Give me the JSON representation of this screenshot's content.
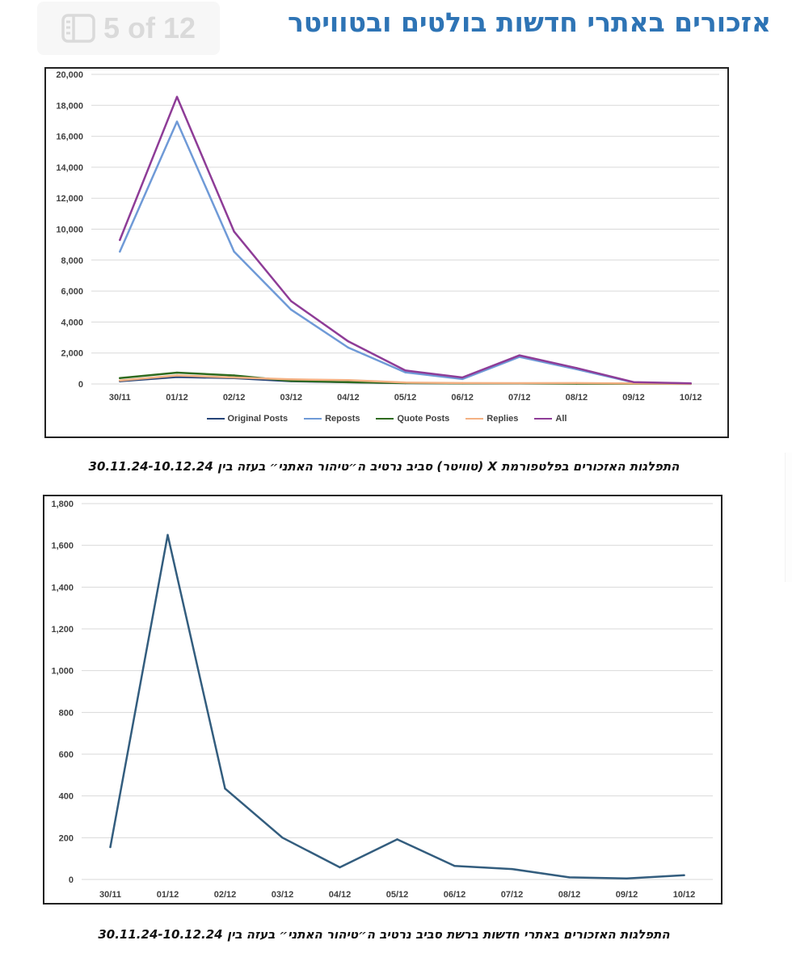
{
  "header": {
    "title": "אזכורים באתרי חדשות בולטים ובטוויטר",
    "page_indicator": "5 of 12",
    "page_icon": "sidebar-panel-icon"
  },
  "captions": {
    "chart1": "התפלגות האזכורים בפלטפורמת X (טוויטר) סביב נרטיב ה״טיהור האתני״ בעזה בין 30.11.24-10.12.24",
    "chart2": "התפלגות האזכורים באתרי חדשות ברשת סביב נרטיב ה״טיהור האתני״ בעזה בין 30.11.24-10.12.24"
  },
  "colors": {
    "original_posts": "#264478",
    "reposts": "#6f9ad7",
    "quote_posts": "#2e6b1f",
    "replies": "#f4b183",
    "all": "#8e3c97",
    "news": "#335d7e",
    "title": "#2e74b5"
  },
  "chart_data": [
    {
      "type": "line",
      "categories": [
        "30/11",
        "01/12",
        "02/12",
        "03/12",
        "04/12",
        "05/12",
        "06/12",
        "07/12",
        "08/12",
        "09/12",
        "10/12"
      ],
      "y_ticks": [
        "0",
        "2,000",
        "4,000",
        "6,000",
        "8,000",
        "10,000",
        "12,000",
        "14,000",
        "16,000",
        "18,000",
        "20,000"
      ],
      "ylim": [
        0,
        20000
      ],
      "grid": true,
      "legend_position": "bottom",
      "series": [
        {
          "name": "Original Posts",
          "values": [
            180,
            450,
            380,
            180,
            110,
            50,
            30,
            30,
            30,
            20,
            10
          ]
        },
        {
          "name": "Reposts",
          "values": [
            8550,
            16950,
            8550,
            4800,
            2350,
            750,
            320,
            1750,
            950,
            100,
            30
          ]
        },
        {
          "name": "Quote Posts",
          "values": [
            380,
            730,
            550,
            200,
            120,
            60,
            40,
            40,
            20,
            10,
            5
          ]
        },
        {
          "name": "Replies",
          "values": [
            220,
            550,
            420,
            300,
            250,
            90,
            60,
            50,
            60,
            30,
            10
          ]
        },
        {
          "name": "All",
          "values": [
            9300,
            18550,
            9850,
            5350,
            2750,
            870,
            420,
            1850,
            1030,
            120,
            40
          ]
        }
      ]
    },
    {
      "type": "line",
      "categories": [
        "30/11",
        "01/12",
        "02/12",
        "03/12",
        "04/12",
        "05/12",
        "06/12",
        "07/12",
        "08/12",
        "09/12",
        "10/12"
      ],
      "y_ticks": [
        "0",
        "200",
        "400",
        "600",
        "800",
        "1,000",
        "1,200",
        "1,400",
        "1,600",
        "1,800"
      ],
      "ylim": [
        0,
        1800
      ],
      "grid": true,
      "series": [
        {
          "values": [
            155,
            1650,
            435,
            200,
            58,
            192,
            65,
            50,
            10,
            5,
            20
          ]
        }
      ]
    }
  ]
}
